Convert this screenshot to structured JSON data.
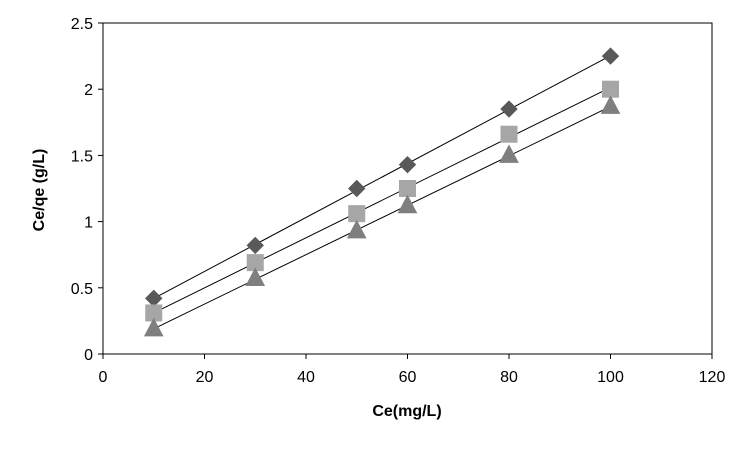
{
  "chart_data": {
    "type": "scatter",
    "title": "",
    "xlabel": "Ce(mg/L)",
    "ylabel": "Ce/qe (g/L)",
    "xlim": [
      0,
      120
    ],
    "ylim": [
      0,
      2.5
    ],
    "x_ticks": [
      0,
      20,
      40,
      60,
      80,
      100,
      120
    ],
    "y_ticks": [
      0,
      0.5,
      1,
      1.5,
      2,
      2.5
    ],
    "x_tick_labels": [
      "0",
      "20",
      "40",
      "60",
      "80",
      "100",
      "120"
    ],
    "y_tick_labels": [
      "0",
      "0.5",
      "1",
      "1.5",
      "2",
      "2.5"
    ],
    "grid": false,
    "legend": "none",
    "series": [
      {
        "marker": "diamond",
        "color": "#595959",
        "x": [
          10,
          30,
          50,
          60,
          80,
          100
        ],
        "y": [
          0.42,
          0.82,
          1.25,
          1.43,
          1.85,
          2.25
        ],
        "trendline": true
      },
      {
        "marker": "square",
        "color": "#a6a6a6",
        "x": [
          10,
          30,
          50,
          60,
          80,
          100
        ],
        "y": [
          0.31,
          0.69,
          1.06,
          1.25,
          1.66,
          2.0
        ],
        "trendline": true
      },
      {
        "marker": "triangle",
        "color": "#7f7f7f",
        "x": [
          10,
          30,
          50,
          60,
          80,
          100
        ],
        "y": [
          0.19,
          0.57,
          0.93,
          1.12,
          1.5,
          1.87
        ],
        "trendline": true
      }
    ]
  }
}
